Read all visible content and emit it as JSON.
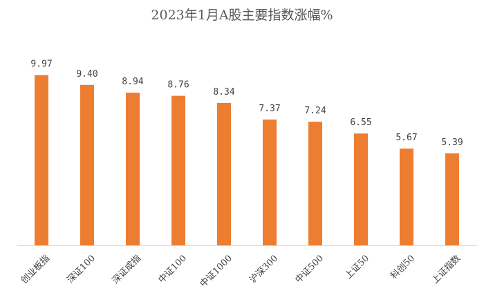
{
  "chart_data": {
    "type": "bar",
    "title": "2023年1月A股主要指数涨幅%",
    "categories": [
      "创业板指",
      "深证100",
      "深证成指",
      "中证100",
      "中证1000",
      "沪深300",
      "中证500",
      "上证50",
      "科创50",
      "上证指数"
    ],
    "values": [
      9.97,
      9.4,
      8.94,
      8.76,
      8.34,
      7.37,
      7.24,
      6.55,
      5.67,
      5.39
    ],
    "value_labels": [
      "9.97",
      "9.40",
      "8.94",
      "8.76",
      "8.34",
      "7.37",
      "7.24",
      "6.55",
      "5.67",
      "5.39"
    ],
    "color": "#ed7d31"
  }
}
